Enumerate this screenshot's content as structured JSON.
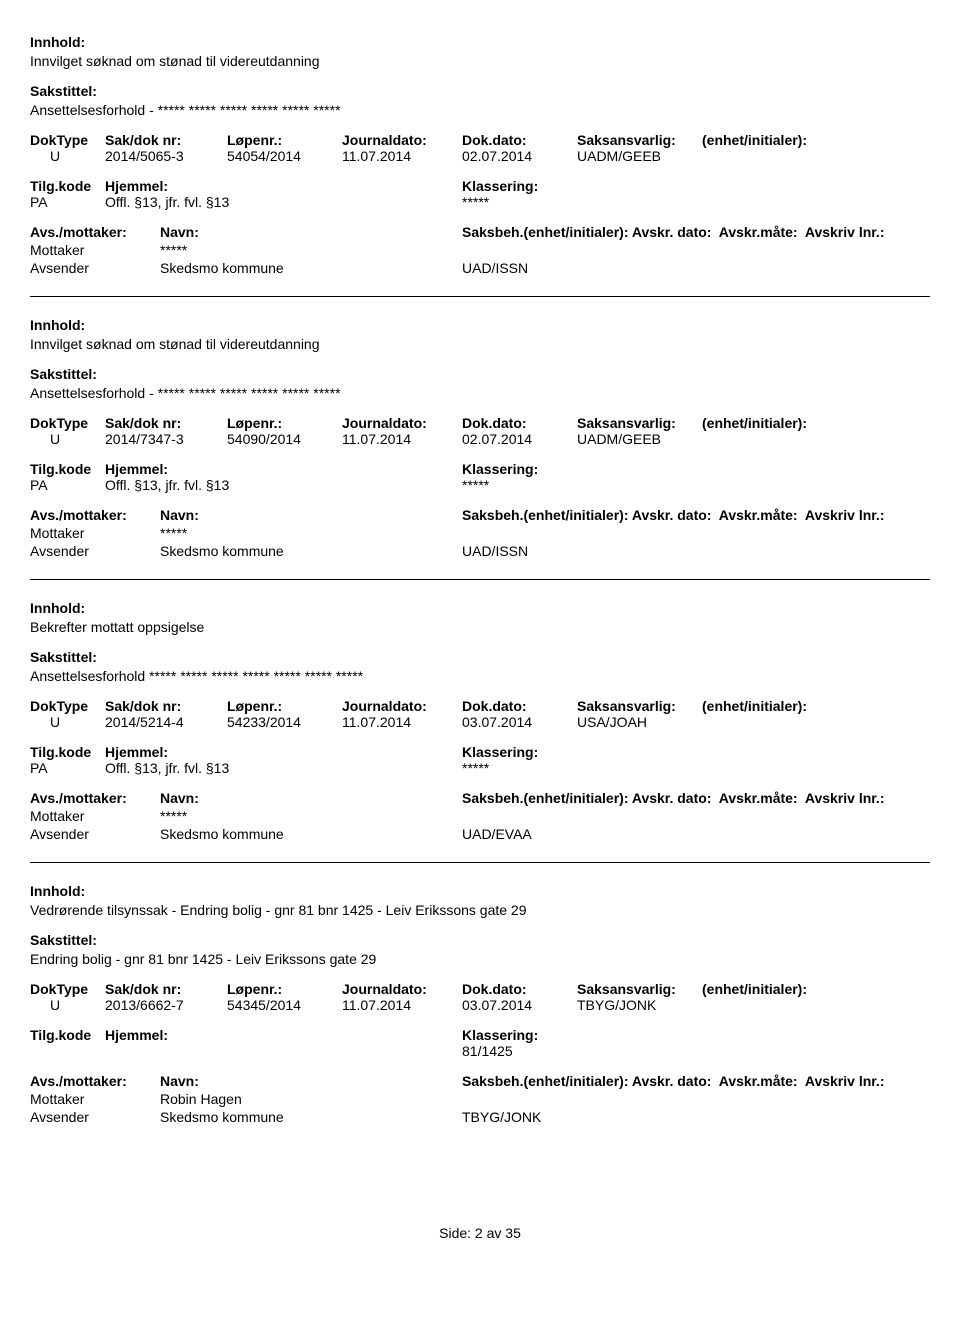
{
  "labels": {
    "innhold": "Innhold:",
    "sakstittel": "Sakstittel:",
    "doktype": "DokType",
    "sakdok": "Sak/dok nr:",
    "lopenr": "Løpenr.:",
    "journaldato": "Journaldato:",
    "dokdato": "Dok.dato:",
    "saksansvarlig": "Saksansvarlig:",
    "enhet": "(enhet/initialer):",
    "tilgkode": "Tilg.kode",
    "hjemmel": "Hjemmel:",
    "klassering": "Klassering:",
    "avsmottaker": "Avs./mottaker:",
    "navn": "Navn:",
    "saksbeh": "Saksbeh.(enhet/initialer):",
    "avskrdato": "Avskr. dato:",
    "avskrmate": "Avskr.måte:",
    "avskrivlnr": "Avskriv lnr.:",
    "mottaker": "Mottaker",
    "avsender": "Avsender"
  },
  "entries": [
    {
      "innhold": "Innvilget søknad om stønad til videreutdanning",
      "sakstittel": "Ansettelsesforhold - ***** ***** ***** ***** ***** *****",
      "doktype": "U",
      "sakdok": "2014/5065-3",
      "lopenr": "54054/2014",
      "jdato": "11.07.2014",
      "ddato": "02.07.2014",
      "ansvar": "UADM/GEEB",
      "tilg": "PA",
      "hjemmel": "Offl. §13, jfr. fvl. §13",
      "klass": "*****",
      "parties": [
        {
          "role": "Mottaker",
          "name": "*****",
          "unit": ""
        },
        {
          "role": "Avsender",
          "name": "Skedsmo kommune",
          "unit": "UAD/ISSN"
        }
      ]
    },
    {
      "innhold": "Innvilget søknad om stønad til videreutdanning",
      "sakstittel": "Ansettelsesforhold - ***** ***** ***** ***** ***** *****",
      "doktype": "U",
      "sakdok": "2014/7347-3",
      "lopenr": "54090/2014",
      "jdato": "11.07.2014",
      "ddato": "02.07.2014",
      "ansvar": "UADM/GEEB",
      "tilg": "PA",
      "hjemmel": "Offl. §13, jfr. fvl. §13",
      "klass": "*****",
      "parties": [
        {
          "role": "Mottaker",
          "name": "*****",
          "unit": ""
        },
        {
          "role": "Avsender",
          "name": "Skedsmo kommune",
          "unit": "UAD/ISSN"
        }
      ]
    },
    {
      "innhold": "Bekrefter mottatt oppsigelse",
      "sakstittel": "Ansettelsesforhold ***** ***** ***** ***** ***** ***** *****",
      "doktype": "U",
      "sakdok": "2014/5214-4",
      "lopenr": "54233/2014",
      "jdato": "11.07.2014",
      "ddato": "03.07.2014",
      "ansvar": "USA/JOAH",
      "tilg": "PA",
      "hjemmel": "Offl. §13, jfr. fvl. §13",
      "klass": "*****",
      "parties": [
        {
          "role": "Mottaker",
          "name": "*****",
          "unit": ""
        },
        {
          "role": "Avsender",
          "name": "Skedsmo kommune",
          "unit": "UAD/EVAA"
        }
      ]
    },
    {
      "innhold": "Vedrørende tilsynssak - Endring bolig - gnr 81 bnr 1425 - Leiv Erikssons gate 29",
      "sakstittel": "Endring bolig - gnr 81 bnr 1425 - Leiv Erikssons gate 29",
      "doktype": "U",
      "sakdok": "2013/6662-7",
      "lopenr": "54345/2014",
      "jdato": "11.07.2014",
      "ddato": "03.07.2014",
      "ansvar": "TBYG/JONK",
      "tilg": "",
      "hjemmel": "",
      "klass": "81/1425",
      "parties": [
        {
          "role": "Mottaker",
          "name": "Robin Hagen",
          "unit": ""
        },
        {
          "role": "Avsender",
          "name": "Skedsmo kommune",
          "unit": "TBYG/JONK"
        }
      ]
    }
  ],
  "footer": "Side: 2 av 35"
}
